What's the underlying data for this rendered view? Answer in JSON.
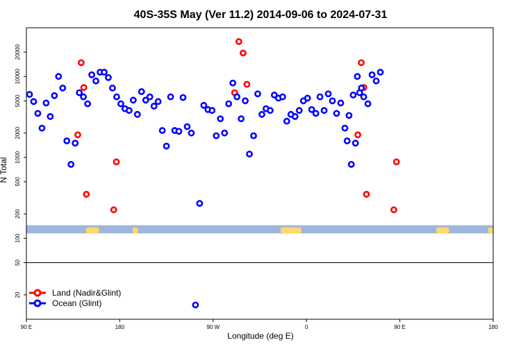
{
  "chart_data": {
    "type": "scatter",
    "title": "40S-35S May (Ver 11.2)   2014-09-06 to 2024-07-31",
    "xlabel": "Longitude (deg E)",
    "ylabel": "N Total",
    "y_scale": "log",
    "ylim": [
      10,
      40000
    ],
    "xlim": [
      90,
      450
    ],
    "x_ticks": [
      {
        "value": 90,
        "label": "90 E"
      },
      {
        "value": 180,
        "label": "180"
      },
      {
        "value": 270,
        "label": "90 W"
      },
      {
        "value": 360,
        "label": "0"
      },
      {
        "value": 450,
        "label": "90 E"
      },
      {
        "value": 540,
        "label": "180"
      }
    ],
    "x_ticks_note": "axis spans one display width; second 90E and 180 labels sit at the right",
    "y_ticks": [
      {
        "value": 20,
        "label": "20"
      },
      {
        "value": 50,
        "label": "50"
      },
      {
        "value": 100,
        "label": "100"
      },
      {
        "value": 200,
        "label": "200"
      },
      {
        "value": 500,
        "label": "500"
      },
      {
        "value": 1000,
        "label": "1000"
      },
      {
        "value": 2000,
        "label": "2000"
      },
      {
        "value": 5000,
        "label": "5000"
      },
      {
        "value": 10000,
        "label": "10000"
      },
      {
        "value": 20000,
        "label": "20000"
      }
    ],
    "reference_line_y": 50,
    "map_strip_y_range": [
      115,
      145
    ],
    "legend_placement": "bottom-left",
    "series": [
      {
        "name": "Land (Nadir&Glint)",
        "color": "#ff0000",
        "points": [
          [
            139.5,
            1900
          ],
          [
            142.8,
            14800
          ],
          [
            145.3,
            7300
          ],
          [
            147.8,
            350
          ],
          [
            174.2,
            225
          ],
          [
            176.7,
            880
          ],
          [
            290.7,
            6300
          ],
          [
            294.8,
            27000
          ],
          [
            298.9,
            19500
          ],
          [
            302.6,
            8000
          ],
          [
            409.5,
            1900
          ],
          [
            412.8,
            14800
          ],
          [
            415.3,
            7300
          ],
          [
            417.8,
            350
          ],
          [
            444.2,
            225
          ],
          [
            446.7,
            880
          ]
        ]
      },
      {
        "name": "Ocean (Glint)",
        "color": "#0000ff",
        "points": [
          [
            93,
            6000
          ],
          [
            97,
            4900
          ],
          [
            101,
            3500
          ],
          [
            105,
            2300
          ],
          [
            109,
            4700
          ],
          [
            113,
            3200
          ],
          [
            117,
            5800
          ],
          [
            121,
            10000
          ],
          [
            125,
            7200
          ],
          [
            129,
            1600
          ],
          [
            133,
            820
          ],
          [
            137,
            1500
          ],
          [
            141,
            6300
          ],
          [
            145,
            5600
          ],
          [
            149,
            4600
          ],
          [
            153,
            10500
          ],
          [
            157,
            8800
          ],
          [
            161,
            11300
          ],
          [
            165,
            11300
          ],
          [
            169,
            9700
          ],
          [
            173,
            7200
          ],
          [
            177,
            5600
          ],
          [
            181,
            4600
          ],
          [
            185,
            4000
          ],
          [
            189,
            3800
          ],
          [
            193,
            5100
          ],
          [
            197,
            3400
          ],
          [
            201,
            6500
          ],
          [
            205,
            5100
          ],
          [
            209,
            5600
          ],
          [
            213,
            4300
          ],
          [
            217,
            4900
          ],
          [
            221,
            2150
          ],
          [
            225,
            1380
          ],
          [
            229,
            5600
          ],
          [
            233,
            2150
          ],
          [
            237,
            2100
          ],
          [
            241,
            5500
          ],
          [
            245,
            2400
          ],
          [
            249,
            2000
          ],
          [
            253,
            15
          ],
          [
            257,
            270
          ],
          [
            261,
            4400
          ],
          [
            265,
            3900
          ],
          [
            269,
            3800
          ],
          [
            273,
            1850
          ],
          [
            277,
            3000
          ],
          [
            281,
            2000
          ],
          [
            285,
            4600
          ],
          [
            289,
            8300
          ],
          [
            293,
            5600
          ],
          [
            297,
            3000
          ],
          [
            301,
            5000
          ],
          [
            305,
            1100
          ],
          [
            309,
            1850
          ],
          [
            313,
            6100
          ],
          [
            317,
            3400
          ],
          [
            321,
            4000
          ],
          [
            325,
            3800
          ],
          [
            329,
            5900
          ],
          [
            333,
            5400
          ],
          [
            337,
            5600
          ],
          [
            341,
            2800
          ],
          [
            345,
            3400
          ],
          [
            349,
            3200
          ],
          [
            353,
            3800
          ],
          [
            357,
            5000
          ],
          [
            361,
            5400
          ],
          [
            365,
            3900
          ],
          [
            369,
            3500
          ],
          [
            373,
            5600
          ],
          [
            377,
            3800
          ],
          [
            381,
            6100
          ],
          [
            385,
            5000
          ],
          [
            389,
            3500
          ],
          [
            393,
            4700
          ],
          [
            397,
            2300
          ],
          [
            401,
            3300
          ],
          [
            405,
            5900
          ],
          [
            409,
            10000
          ],
          [
            413,
            7200
          ],
          [
            399.2,
            1600
          ],
          [
            403.2,
            820
          ],
          [
            407.2,
            1500
          ],
          [
            411.2,
            6300
          ],
          [
            415.2,
            5600
          ],
          [
            419.2,
            4600
          ],
          [
            423.2,
            10500
          ],
          [
            427.2,
            8800
          ],
          [
            431.2,
            11300
          ]
        ]
      }
    ]
  },
  "legend": {
    "land_label": "Land (Nadir&Glint)",
    "ocean_label": "Ocean (Glint)"
  }
}
